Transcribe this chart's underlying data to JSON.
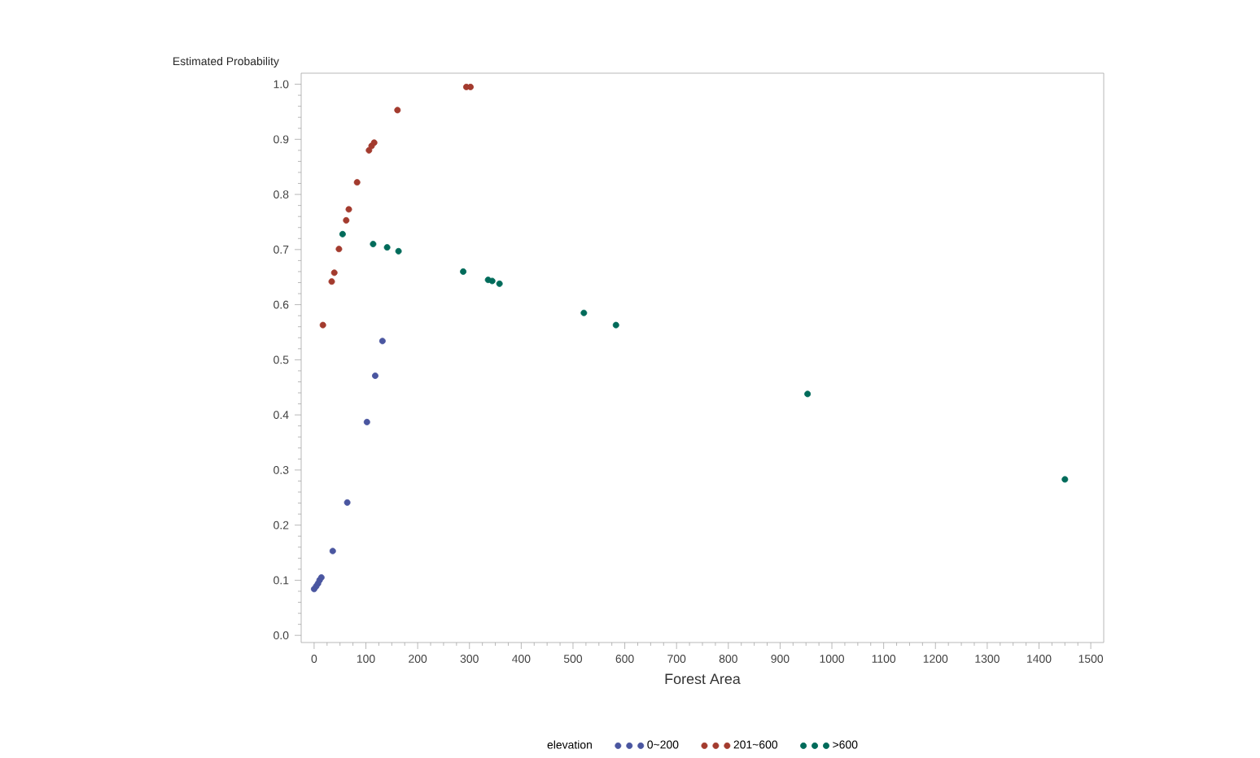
{
  "chart_data": {
    "type": "scatter",
    "xlabel": "Forest Area",
    "ylabel": "Estimated Probability",
    "legend_title": "elevation",
    "legend": "bottom",
    "marker": "circle",
    "xlim": [
      -25,
      1525
    ],
    "ylim": [
      -0.013,
      1.02
    ],
    "xticks": [
      0,
      100,
      200,
      300,
      400,
      500,
      600,
      700,
      800,
      900,
      1000,
      1100,
      1200,
      1300,
      1400,
      1500
    ],
    "yticks": [
      {
        "value": 0,
        "label": "0.0"
      },
      0.1,
      0.2,
      0.3,
      0.4,
      0.5,
      0.6,
      0.7,
      0.8,
      0.9,
      {
        "value": 1,
        "label": "1.0"
      }
    ],
    "series": [
      {
        "name": "0~200",
        "color": "#4a56a0",
        "x": [
          0,
          4,
          7.5,
          10.5,
          14,
          36,
          64,
          102,
          118,
          132
        ],
        "values": [
          0.084,
          0.089,
          0.094,
          0.1,
          0.105,
          0.153,
          0.241,
          0.387,
          0.471,
          0.534
        ]
      },
      {
        "name": "201~600",
        "color": "#a33b2e",
        "x": [
          17,
          34,
          39,
          48,
          62,
          67,
          83,
          106,
          111,
          116,
          161,
          294,
          302
        ],
        "values": [
          0.563,
          0.642,
          0.658,
          0.701,
          0.753,
          0.773,
          0.822,
          0.88,
          0.888,
          0.894,
          0.953,
          0.995,
          0.995
        ]
      },
      {
        "name": ">600",
        "color": "#006b5a",
        "x": [
          55,
          114,
          141,
          163,
          288,
          336,
          344,
          358,
          521,
          583,
          953,
          1450
        ],
        "values": [
          0.728,
          0.71,
          0.704,
          0.697,
          0.66,
          0.645,
          0.643,
          0.638,
          0.585,
          0.563,
          0.438,
          0.283
        ]
      }
    ]
  }
}
